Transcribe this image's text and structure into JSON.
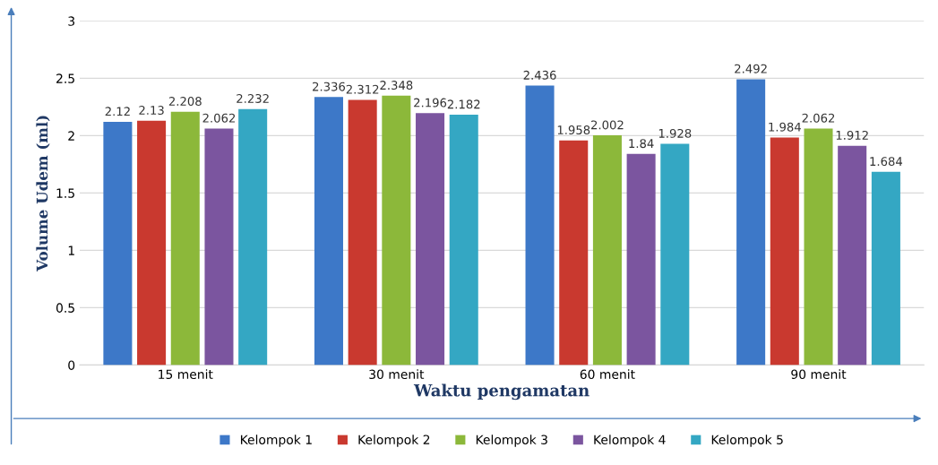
{
  "chart_data": {
    "type": "bar",
    "xlabel": "Waktu pengamatan",
    "ylabel": "Volume Udem (ml)",
    "categories": [
      "15 menit",
      "30 menit",
      "60 menit",
      "90 menit"
    ],
    "series": [
      {
        "name": "Kelompok 1",
        "color": "#3d78c8",
        "values": [
          2.12,
          2.336,
          2.436,
          2.492
        ]
      },
      {
        "name": "Kelompok 2",
        "color": "#c9392f",
        "values": [
          2.13,
          2.312,
          1.958,
          1.984
        ]
      },
      {
        "name": "Kelompok 3",
        "color": "#8cb83a",
        "values": [
          2.208,
          2.348,
          2.002,
          2.062
        ]
      },
      {
        "name": "Kelompok 4",
        "color": "#7b559f",
        "values": [
          2.062,
          2.196,
          1.84,
          1.912
        ]
      },
      {
        "name": "Kelompok 5",
        "color": "#34a7c3",
        "values": [
          2.232,
          2.182,
          1.928,
          1.684
        ]
      }
    ],
    "ylim": [
      0,
      3
    ],
    "yticks": [
      0,
      0.5,
      1,
      1.5,
      2,
      2.5,
      3
    ],
    "grid": "y",
    "legend": "bottom",
    "data_labels": true
  }
}
